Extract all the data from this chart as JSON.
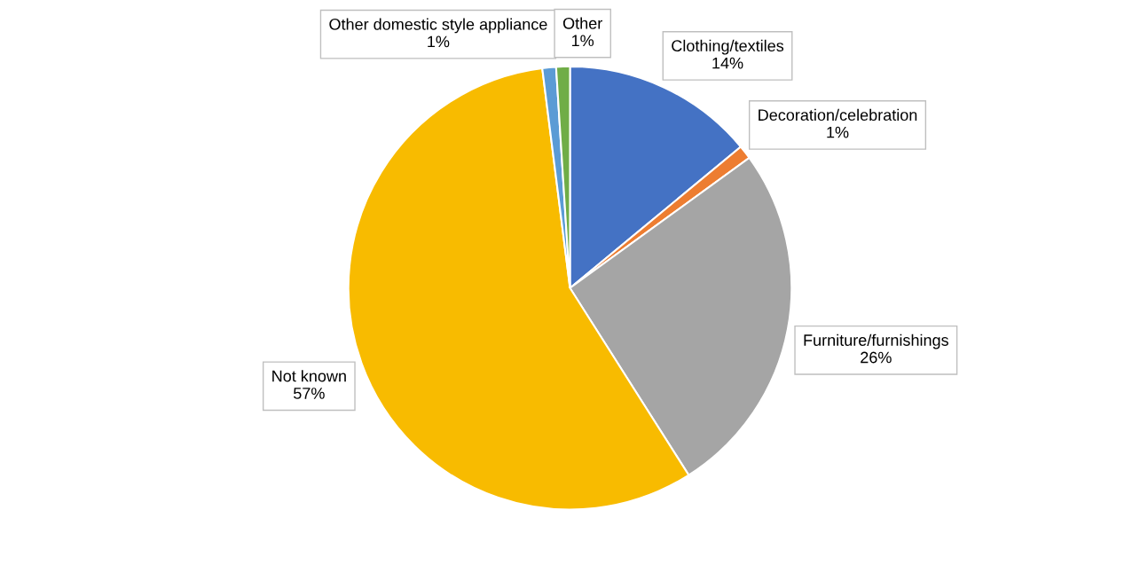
{
  "chart_data": {
    "type": "pie",
    "categories": [
      "Clothing/textiles",
      "Decoration/celebration",
      "Furniture/furnishings",
      "Not known",
      "Other domestic style appliance",
      "Other"
    ],
    "values": [
      14,
      1,
      26,
      57,
      1,
      1
    ],
    "value_labels": [
      "14%",
      "1%",
      "26%",
      "57%",
      "1%",
      "1%"
    ],
    "colors": [
      "#4472c4",
      "#ed7d31",
      "#a5a5a5",
      "#f8bb00",
      "#5b9bd5",
      "#70ad47"
    ]
  }
}
